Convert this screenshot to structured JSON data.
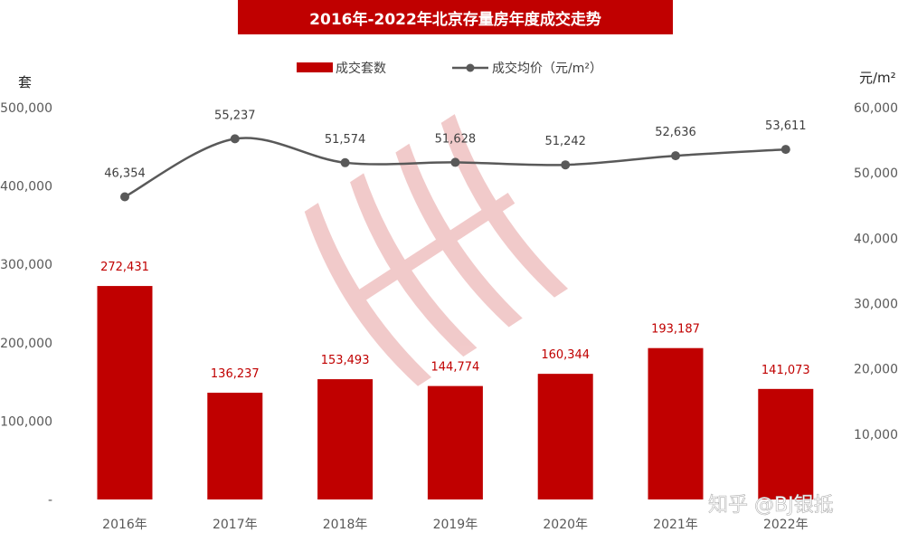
{
  "chart_data": {
    "type": "bar+line",
    "title": "2016年-2022年北京存量房年度成交走势",
    "categories": [
      "2016年",
      "2017年",
      "2018年",
      "2019年",
      "2020年",
      "2021年",
      "2022年"
    ],
    "series": [
      {
        "name": "成交套数",
        "type": "bar",
        "axis": "left",
        "values": [
          272431,
          136237,
          153493,
          144774,
          160344,
          193187,
          141073
        ],
        "labels": [
          "272,431",
          "136,237",
          "153,493",
          "144,774",
          "160,344",
          "193,187",
          "141,073"
        ],
        "color": "#c00000"
      },
      {
        "name": "成交均价（元/m²）",
        "type": "line",
        "axis": "right",
        "values": [
          46354,
          55237,
          51574,
          51628,
          51242,
          52636,
          53611
        ],
        "labels": [
          "46,354",
          "55,237",
          "51,574",
          "51,628",
          "51,242",
          "52,636",
          "53,611"
        ],
        "color": "#595959"
      }
    ],
    "y_left": {
      "label": "套",
      "min": 0,
      "max": 500000,
      "ticks": [
        "-",
        "100,000",
        "200,000",
        "300,000",
        "400,000",
        "500,000"
      ]
    },
    "y_right": {
      "label": "元/m²",
      "min": 0,
      "max": 60000,
      "ticks": [
        "10,000",
        "20,000",
        "30,000",
        "40,000",
        "50,000",
        "60,000"
      ]
    },
    "legend": "top-center",
    "grid": false
  },
  "watermark": "知乎 @BJ银抵"
}
